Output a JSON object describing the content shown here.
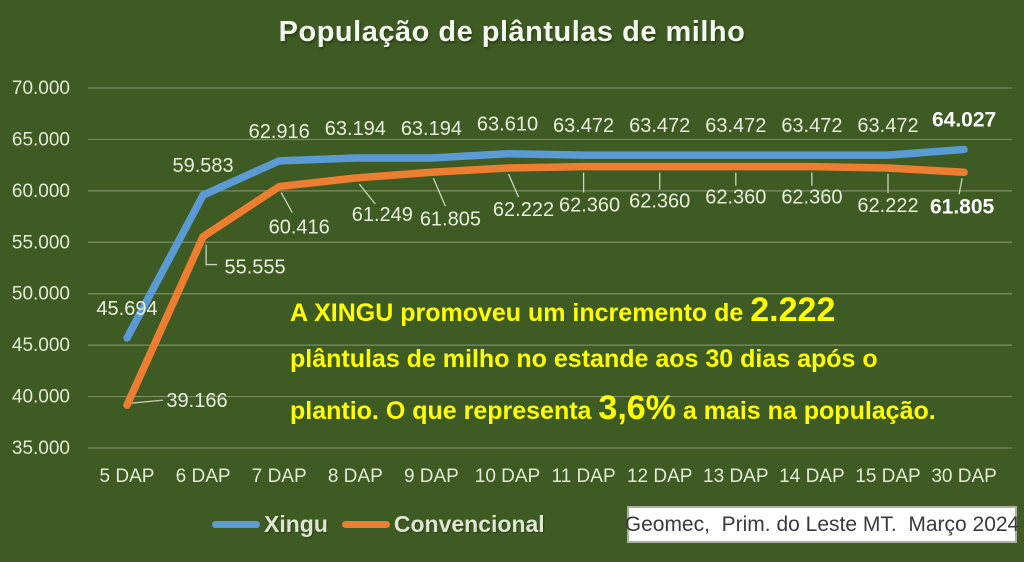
{
  "title": "População de plântulas de milho",
  "chart_data": {
    "type": "line",
    "categories": [
      "5 DAP",
      "6 DAP",
      "7 DAP",
      "8 DAP",
      "9 DAP",
      "10 DAP",
      "11 DAP",
      "12 DAP",
      "13 DAP",
      "14 DAP",
      "15 DAP",
      "30 DAP"
    ],
    "series": [
      {
        "name": "Xingu",
        "color": "#5b9bd5",
        "values": [
          45694,
          59583,
          62916,
          63194,
          63194,
          63610,
          63472,
          63472,
          63472,
          63472,
          63472,
          64027
        ],
        "labels": [
          "45.694",
          "59.583",
          "62.916",
          "63.194",
          "63.194",
          "63.610",
          "63.472",
          "63.472",
          "63.472",
          "63.472",
          "63.472",
          "64.027"
        ]
      },
      {
        "name": "Convencional",
        "color": "#ed7d31",
        "values": [
          39166,
          55555,
          60416,
          61249,
          61805,
          62222,
          62360,
          62360,
          62360,
          62360,
          62222,
          61805
        ],
        "labels": [
          "39.166",
          "55.555",
          "60.416",
          "61.249",
          "61.805",
          "62.222",
          "62.360",
          "62.360",
          "62.360",
          "62.360",
          "62.222",
          "61.805"
        ]
      }
    ],
    "title": "População de plântulas de milho",
    "xlabel": "",
    "ylabel": "",
    "ylim": [
      35000,
      70000
    ],
    "ytick_step": 5000,
    "ytick_labels_top_to_bottom": [
      "70.000",
      "65.000",
      "60.000",
      "55.000",
      "50.000",
      "45.000",
      "40.000",
      "35.000"
    ],
    "grid": true,
    "legend_position": "bottom"
  },
  "annotation": {
    "line1_pre": "A XINGU promoveu um incremento de ",
    "line1_big": "2.222",
    "line2": "plântulas de milho no estande aos 30 dias após o",
    "line3_pre": "plantio. O que representa ",
    "line3_big": "3,6%",
    "line3_post": " a mais na população."
  },
  "legend": {
    "items": [
      {
        "label": "Xingu",
        "color": "#5b9bd5"
      },
      {
        "label": "Convencional",
        "color": "#ed7d31"
      }
    ]
  },
  "source_box": {
    "text": "Geomec,  Prim. do Leste MT.  Março 2024"
  },
  "colors": {
    "background": "#3e5b23",
    "grid": "#91a07c",
    "tick_text": "#e3ead6",
    "data_label_text": "#e8eedc",
    "data_label_final": "#ffffff",
    "annotation_text": "#ffff00",
    "title_text": "#f4f8ee"
  }
}
